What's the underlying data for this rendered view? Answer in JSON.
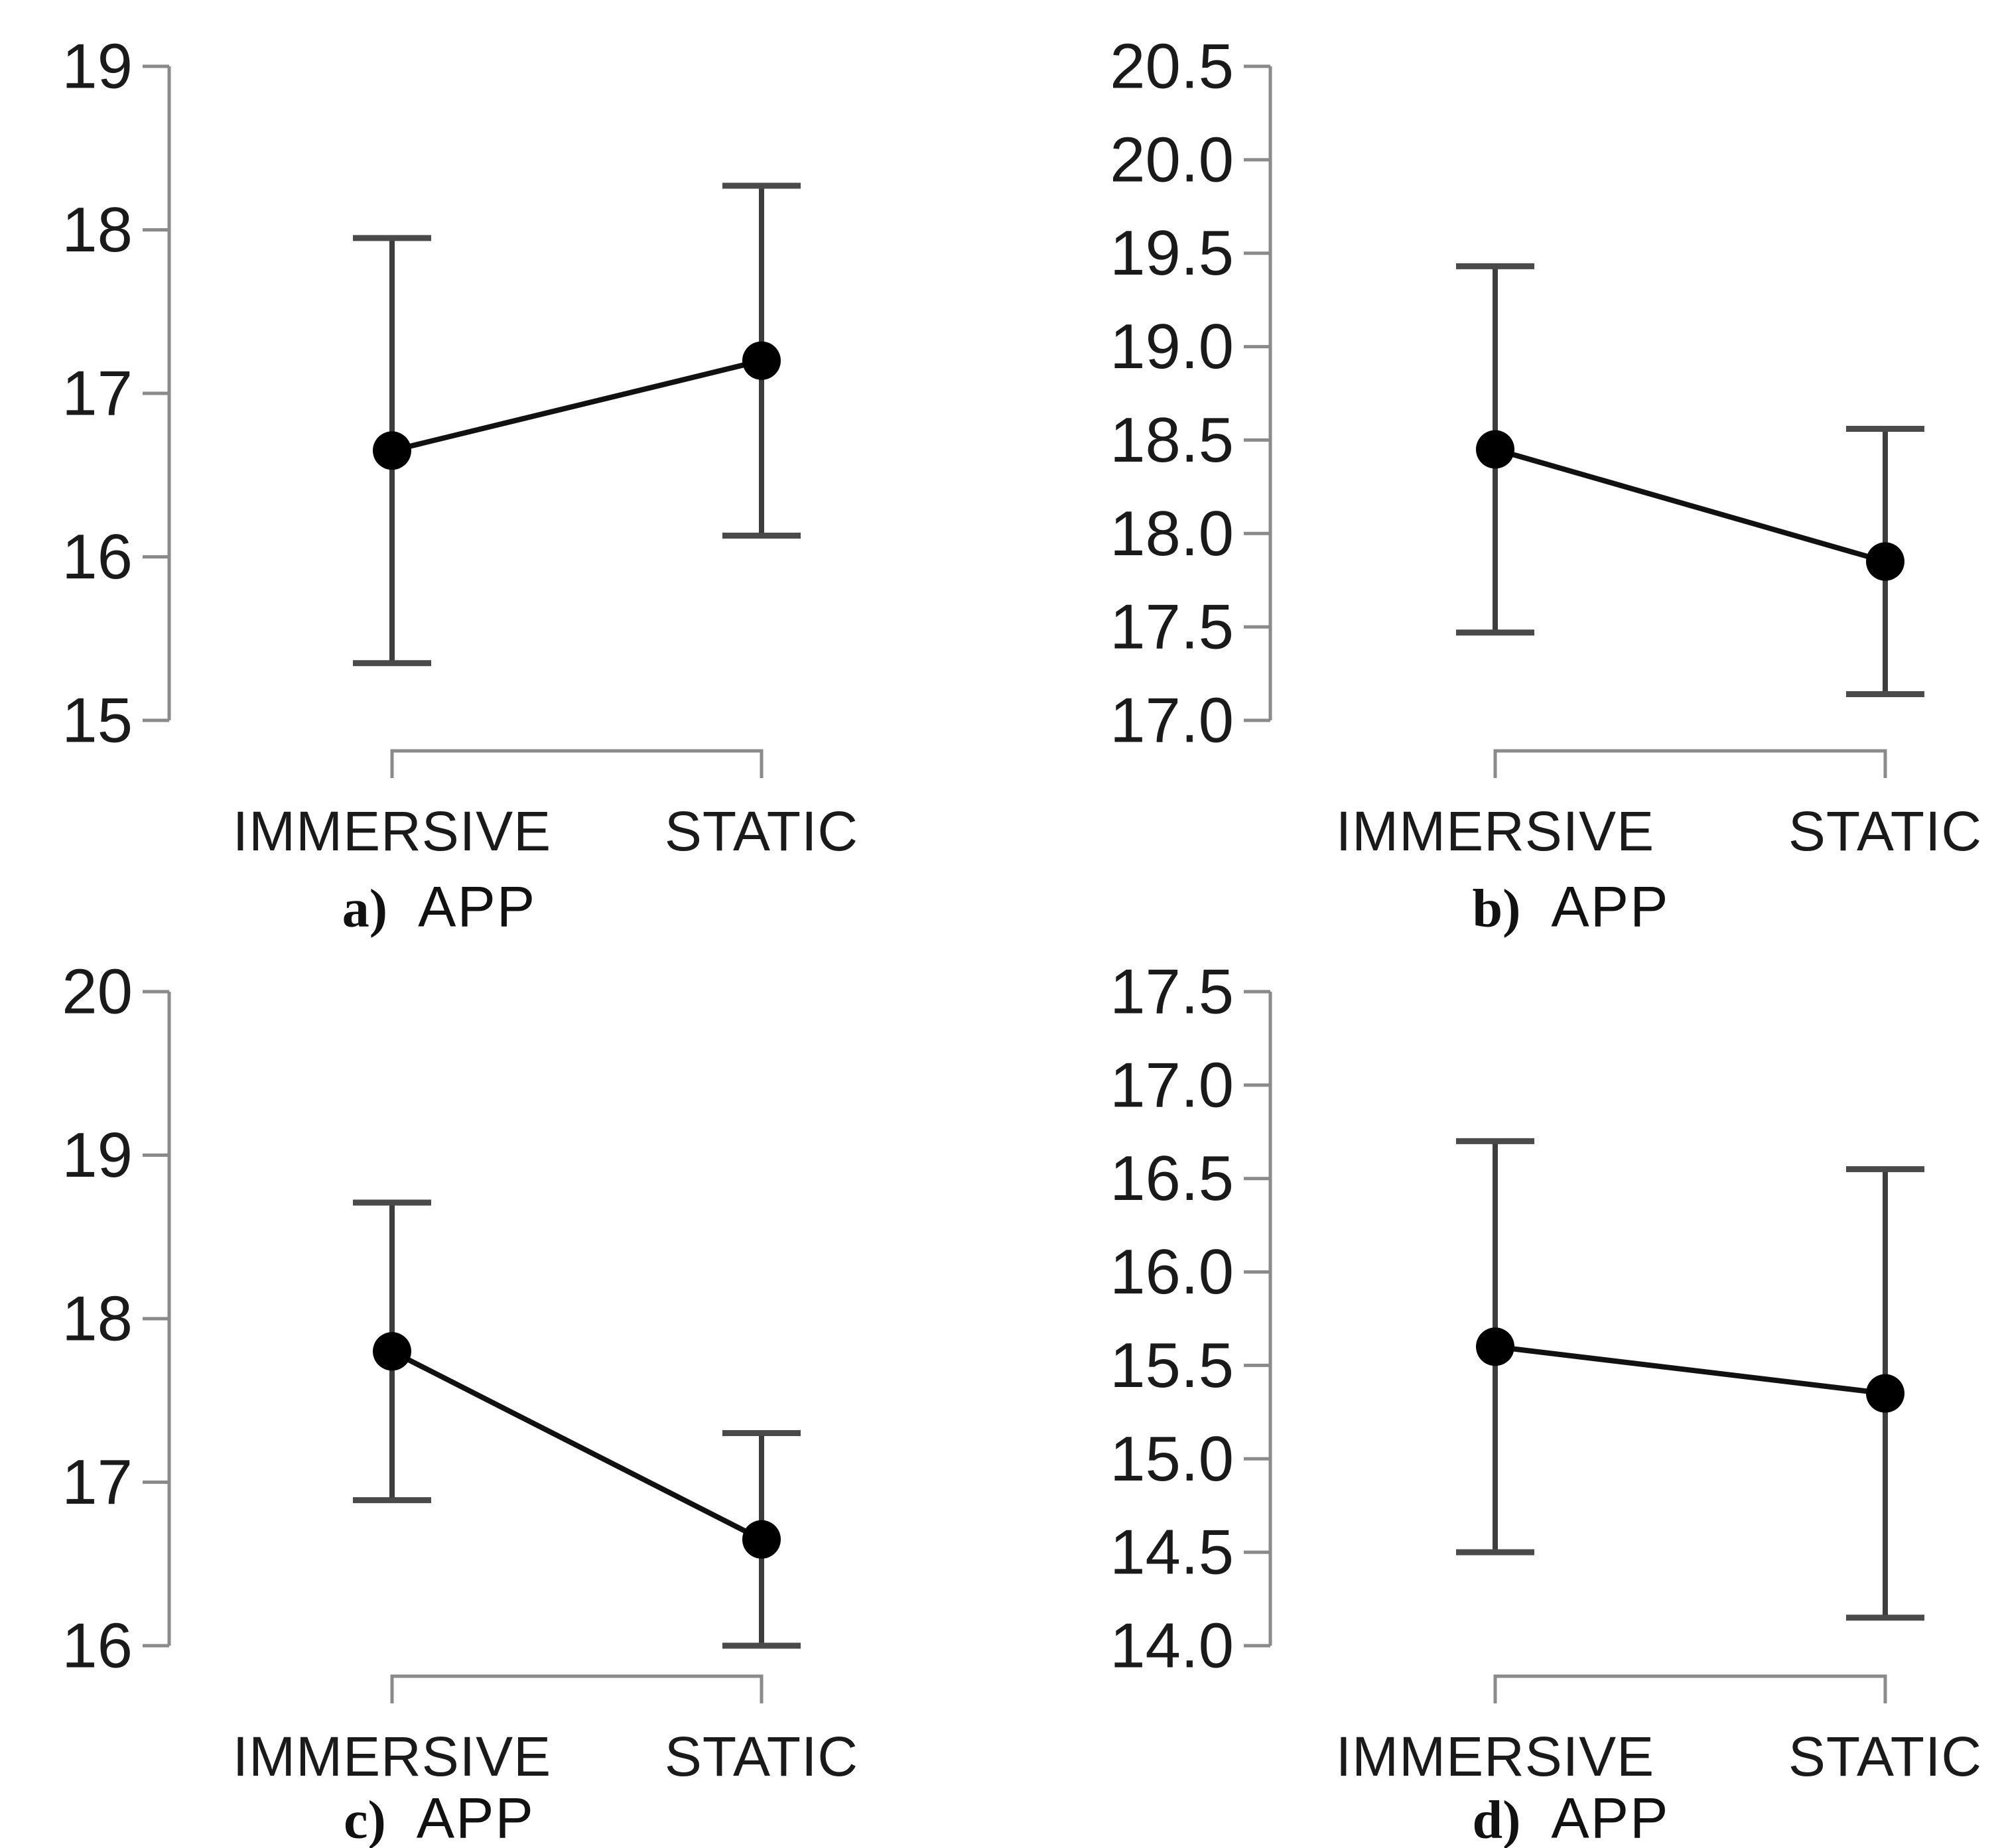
{
  "figure": {
    "description": "Four-panel interaction plot figure; each panel shows mean with confidence-interval error bars for two conditions of factor APP",
    "x_axis_factor": "APP",
    "colors": {
      "background": "#ffffff",
      "axis": "#8a8a8a",
      "whisker": "#3d3d3d",
      "cap": "#4a4a4a",
      "point": "#000000",
      "connector": "#111111",
      "text": "#1a1a1a"
    }
  },
  "chart_data": [
    {
      "type": "pointrange-line",
      "panel_label": "a)",
      "xlabel": "APP",
      "categories": [
        "IMMERSIVE",
        "STATIC"
      ],
      "points": [
        {
          "category": "IMMERSIVE",
          "mean": 16.65,
          "ci_low": 15.35,
          "ci_high": 17.95
        },
        {
          "category": "STATIC",
          "mean": 17.2,
          "ci_low": 16.13,
          "ci_high": 18.27
        }
      ],
      "ylim": [
        15,
        19
      ],
      "ytick_values": [
        19,
        18,
        17,
        16,
        15
      ],
      "ytick_labels": [
        "19",
        "18",
        "17",
        "16",
        "15"
      ],
      "grid": false,
      "legend": false
    },
    {
      "type": "pointrange-line",
      "panel_label": "b)",
      "xlabel": "APP",
      "categories": [
        "IMMERSIVE",
        "STATIC"
      ],
      "points": [
        {
          "category": "IMMERSIVE",
          "mean": 18.45,
          "ci_low": 17.47,
          "ci_high": 19.43
        },
        {
          "category": "STATIC",
          "mean": 17.85,
          "ci_low": 17.14,
          "ci_high": 18.56
        }
      ],
      "ylim": [
        17,
        20.5
      ],
      "ytick_values": [
        20.5,
        20.0,
        19.5,
        19.0,
        18.5,
        18.0,
        17.5,
        17.0
      ],
      "ytick_labels": [
        "20.5",
        "20.0",
        "19.5",
        "19.0",
        "18.5",
        "18.0",
        "17.5",
        "17.0"
      ],
      "grid": false,
      "legend": false
    },
    {
      "type": "pointrange-line",
      "panel_label": "c)",
      "xlabel": "APP",
      "categories": [
        "IMMERSIVE",
        "STATIC"
      ],
      "points": [
        {
          "category": "IMMERSIVE",
          "mean": 17.8,
          "ci_low": 16.89,
          "ci_high": 18.71
        },
        {
          "category": "STATIC",
          "mean": 16.65,
          "ci_low": 16.0,
          "ci_high": 17.3
        }
      ],
      "ylim": [
        16,
        20
      ],
      "ytick_values": [
        20,
        19,
        18,
        17,
        16
      ],
      "ytick_labels": [
        "20",
        "19",
        "18",
        "17",
        "16"
      ],
      "grid": false,
      "legend": false
    },
    {
      "type": "pointrange-line",
      "panel_label": "d)",
      "xlabel": "APP",
      "categories": [
        "IMMERSIVE",
        "STATIC"
      ],
      "points": [
        {
          "category": "IMMERSIVE",
          "mean": 15.6,
          "ci_low": 14.5,
          "ci_high": 16.7
        },
        {
          "category": "STATIC",
          "mean": 15.35,
          "ci_low": 14.15,
          "ci_high": 16.55
        }
      ],
      "ylim": [
        14,
        17.5
      ],
      "ytick_values": [
        17.5,
        17.0,
        16.5,
        16.0,
        15.5,
        15.0,
        14.5,
        14.0
      ],
      "ytick_labels": [
        "17.5",
        "17.0",
        "16.5",
        "16.0",
        "15.5",
        "15.0",
        "14.5",
        "14.0"
      ],
      "grid": false,
      "legend": false
    }
  ]
}
